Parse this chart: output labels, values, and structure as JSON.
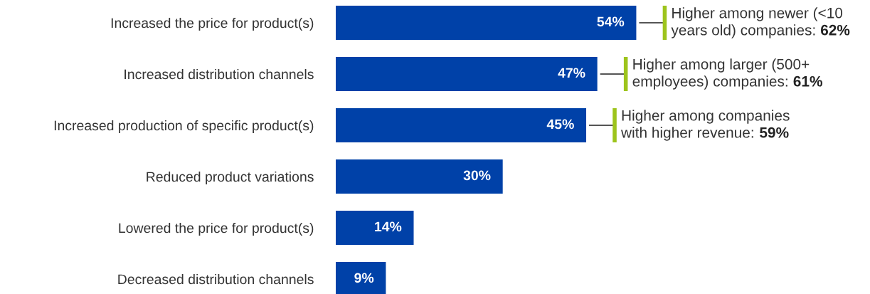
{
  "chart_data": {
    "type": "bar",
    "orientation": "horizontal",
    "value_labels": [
      "54%",
      "47%",
      "45%",
      "30%",
      "14%",
      "9%"
    ],
    "color": "#0041a8",
    "categories": [
      "Increased the price for product(s)",
      "Increased distribution channels",
      "Increased production of specific product(s)",
      "Reduced product variations",
      "Lowered the price for product(s)",
      "Decreased distribution channels"
    ],
    "values": [
      54,
      47,
      45,
      30,
      14,
      9
    ],
    "annotations": [
      {
        "text": "Higher among newer (<10\nyears old) companies: 62%",
        "x": 54,
        "y": "Increased the price for product(s)"
      },
      {
        "text": "Higher among larger (500+\nemployees) companies: 61%",
        "x": 47,
        "y": "Increased distribution channels"
      },
      {
        "text": "Higher among companies\nwith higher revenue: 59%",
        "x": 45,
        "y": "Increased production of specific product(s)"
      }
    ]
  }
}
